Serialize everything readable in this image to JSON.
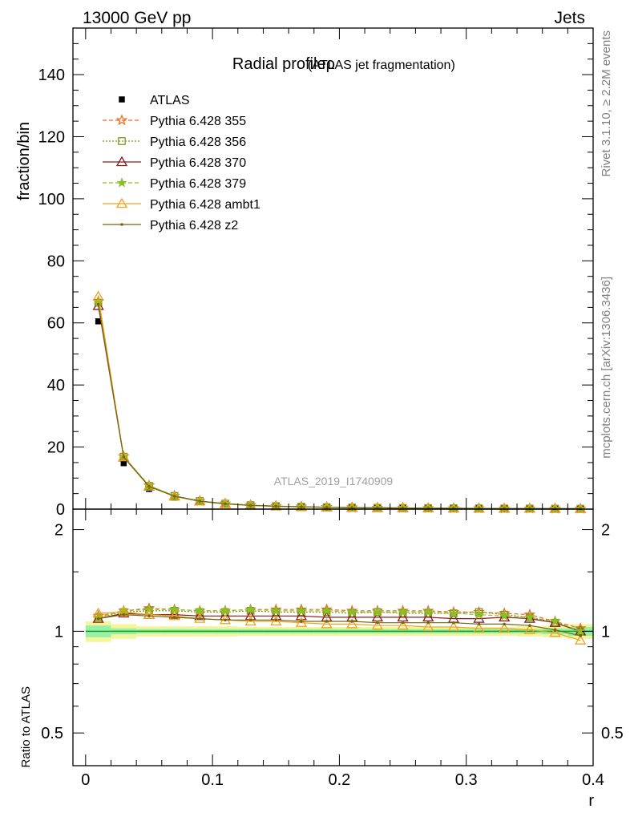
{
  "header": {
    "left": "13000 GeV pp",
    "right": "Jets"
  },
  "side_labels": {
    "rivet": "Rivet 3.1.10, ≥ 2.2M events",
    "mcplots": "mcplots.cern.ch [arXiv:1306.3436]"
  },
  "chart_data": [
    {
      "type": "line",
      "title": "Radial profileρ (ATLAS jet fragmentation)",
      "title_main": "Radial profileρ",
      "title_sub": "(ATLAS jet fragmentation)",
      "watermark": "ATLAS_2019_I1740909",
      "ylabel": "fraction/bin",
      "xlabel": "",
      "xlim": [
        -0.01,
        0.4
      ],
      "ylim": [
        0,
        155
      ],
      "yticks": [
        0,
        20,
        40,
        60,
        80,
        100,
        120,
        140
      ],
      "ytick_labels": [
        "0",
        "20",
        "40",
        "60",
        "80",
        "100",
        "120",
        "140"
      ],
      "legend_position": "top-left",
      "x": [
        0.01,
        0.03,
        0.05,
        0.07,
        0.09,
        0.11,
        0.13,
        0.15,
        0.17,
        0.19,
        0.21,
        0.23,
        0.25,
        0.27,
        0.29,
        0.31,
        0.33,
        0.35,
        0.37,
        0.39
      ],
      "series": [
        {
          "name": "ATLAS",
          "color": "#000000",
          "marker": "square-filled",
          "dash": "none",
          "values": [
            60.5,
            14.8,
            6.5,
            3.7,
            2.3,
            1.55,
            1.1,
            0.85,
            0.68,
            0.55,
            0.45,
            0.38,
            0.33,
            0.28,
            0.24,
            0.21,
            0.18,
            0.16,
            0.14,
            0.12
          ]
        },
        {
          "name": "Pythia 6.428 355",
          "color": "#ee6a1a",
          "marker": "star-open",
          "dash": "5,3",
          "values": [
            67.0,
            17.0,
            7.6,
            4.3,
            2.6,
            1.78,
            1.27,
            0.98,
            0.78,
            0.63,
            0.51,
            0.43,
            0.37,
            0.32,
            0.27,
            0.24,
            0.2,
            0.18,
            0.15,
            0.12
          ]
        },
        {
          "name": "Pythia 6.428 356",
          "color": "#7d9a15",
          "marker": "square-open",
          "dash": "2,2",
          "values": [
            66.5,
            16.9,
            7.5,
            4.25,
            2.6,
            1.77,
            1.26,
            0.97,
            0.77,
            0.62,
            0.51,
            0.43,
            0.37,
            0.32,
            0.27,
            0.24,
            0.2,
            0.18,
            0.15,
            0.12
          ]
        },
        {
          "name": "Pythia 6.428 370",
          "color": "#8b1a1a",
          "marker": "triangle-open",
          "dash": "none",
          "values": [
            65.5,
            16.7,
            7.3,
            4.15,
            2.55,
            1.72,
            1.22,
            0.94,
            0.75,
            0.6,
            0.49,
            0.41,
            0.36,
            0.31,
            0.26,
            0.23,
            0.2,
            0.17,
            0.15,
            0.12
          ]
        },
        {
          "name": "Pythia 6.428 379",
          "color": "#8abf2a",
          "marker": "star-filled",
          "dash": "5,3",
          "values": [
            66.8,
            17.0,
            7.5,
            4.3,
            2.6,
            1.78,
            1.27,
            0.97,
            0.77,
            0.62,
            0.51,
            0.43,
            0.37,
            0.32,
            0.27,
            0.23,
            0.2,
            0.18,
            0.15,
            0.12
          ]
        },
        {
          "name": "Pythia 6.428 ambt1",
          "color": "#f0a020",
          "marker": "triangle-open",
          "dash": "none",
          "values": [
            68.5,
            16.8,
            7.3,
            4.1,
            2.5,
            1.68,
            1.18,
            0.91,
            0.72,
            0.58,
            0.48,
            0.4,
            0.35,
            0.3,
            0.25,
            0.22,
            0.19,
            0.16,
            0.14,
            0.11
          ]
        },
        {
          "name": "Pythia 6.428 z2",
          "color": "#6e6a12",
          "marker": "dot",
          "dash": "none",
          "values": [
            66.0,
            16.8,
            7.3,
            4.15,
            2.55,
            1.7,
            1.2,
            0.92,
            0.73,
            0.59,
            0.48,
            0.41,
            0.35,
            0.3,
            0.26,
            0.22,
            0.19,
            0.16,
            0.14,
            0.12
          ]
        }
      ]
    },
    {
      "type": "line",
      "ylabel": "Ratio to ATLAS",
      "xlabel": "r",
      "xlim": [
        -0.01,
        0.4
      ],
      "ylim": [
        0.4,
        2.3
      ],
      "log_y": true,
      "yticks": [
        0.5,
        1,
        2
      ],
      "ytick_labels": [
        "0.5",
        "1",
        "2"
      ],
      "xticks": [
        0,
        0.1,
        0.2,
        0.3,
        0.4
      ],
      "xtick_labels": [
        "0",
        "0.1",
        "0.2",
        "0.3",
        "0.4"
      ],
      "x": [
        0.01,
        0.03,
        0.05,
        0.07,
        0.09,
        0.11,
        0.13,
        0.15,
        0.17,
        0.19,
        0.21,
        0.23,
        0.25,
        0.27,
        0.29,
        0.31,
        0.33,
        0.35,
        0.37,
        0.39
      ],
      "band_inner": [
        0.04,
        0.02,
        0.015,
        0.015,
        0.015,
        0.015,
        0.015,
        0.015,
        0.015,
        0.015,
        0.015,
        0.015,
        0.015,
        0.015,
        0.015,
        0.015,
        0.015,
        0.015,
        0.02,
        0.03
      ],
      "band_outer": [
        0.07,
        0.05,
        0.035,
        0.035,
        0.035,
        0.035,
        0.03,
        0.03,
        0.03,
        0.03,
        0.03,
        0.03,
        0.03,
        0.03,
        0.03,
        0.03,
        0.03,
        0.035,
        0.04,
        0.05
      ],
      "band_colors": {
        "outer": "#f4f49a",
        "inner": "#98f0a8"
      },
      "reference_color": "#1aa01a",
      "series": [
        {
          "name": "Pythia 6.428 355",
          "color": "#ee6a1a",
          "marker": "star-open",
          "dash": "5,3",
          "values": [
            1.11,
            1.15,
            1.17,
            1.16,
            1.15,
            1.15,
            1.16,
            1.16,
            1.16,
            1.16,
            1.15,
            1.15,
            1.15,
            1.15,
            1.14,
            1.14,
            1.13,
            1.12,
            1.07,
            1.02
          ]
        },
        {
          "name": "Pythia 6.428 356",
          "color": "#7d9a15",
          "marker": "square-open",
          "dash": "2,2",
          "values": [
            1.1,
            1.14,
            1.15,
            1.15,
            1.14,
            1.14,
            1.15,
            1.14,
            1.14,
            1.14,
            1.13,
            1.14,
            1.13,
            1.13,
            1.13,
            1.14,
            1.12,
            1.1,
            1.06,
            1.0
          ]
        },
        {
          "name": "Pythia 6.428 370",
          "color": "#8b1a1a",
          "marker": "triangle-open",
          "dash": "none",
          "values": [
            1.09,
            1.13,
            1.12,
            1.12,
            1.11,
            1.11,
            1.11,
            1.11,
            1.11,
            1.1,
            1.1,
            1.1,
            1.1,
            1.1,
            1.09,
            1.09,
            1.1,
            1.09,
            1.06,
            1.0
          ]
        },
        {
          "name": "Pythia 6.428 379",
          "color": "#8abf2a",
          "marker": "star-filled",
          "dash": "5,3",
          "values": [
            1.1,
            1.15,
            1.16,
            1.16,
            1.15,
            1.15,
            1.16,
            1.15,
            1.15,
            1.15,
            1.14,
            1.14,
            1.14,
            1.14,
            1.13,
            1.12,
            1.11,
            1.1,
            1.07,
            1.0
          ]
        },
        {
          "name": "Pythia 6.428 ambt1",
          "color": "#f0a020",
          "marker": "triangle-open",
          "dash": "none",
          "values": [
            1.13,
            1.14,
            1.12,
            1.11,
            1.09,
            1.08,
            1.07,
            1.07,
            1.06,
            1.05,
            1.05,
            1.04,
            1.04,
            1.03,
            1.03,
            1.02,
            1.02,
            1.01,
            0.99,
            0.94
          ]
        },
        {
          "name": "Pythia 6.428 z2",
          "color": "#6e6a12",
          "marker": "dot",
          "dash": "none",
          "values": [
            1.09,
            1.12,
            1.11,
            1.1,
            1.09,
            1.08,
            1.08,
            1.08,
            1.07,
            1.07,
            1.07,
            1.06,
            1.06,
            1.06,
            1.06,
            1.05,
            1.05,
            1.04,
            1.01,
            0.97
          ]
        }
      ]
    }
  ]
}
